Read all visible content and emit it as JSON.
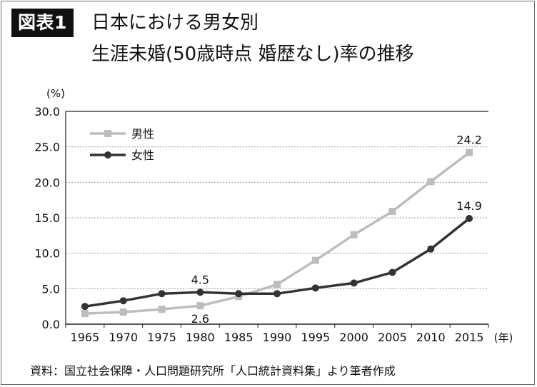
{
  "figure": {
    "tag": "図表1",
    "title_line1": "日本における男女別",
    "title_line2": "生涯未婚(50歳時点 婚歴なし)率の推移",
    "source": "資料：国立社会保障・人口問題研究所「人口統計資料集」より筆者作成"
  },
  "colors": {
    "male": "#bdbdbd",
    "female": "#333333",
    "axis": "#222222",
    "grid": "#9a9a9a"
  },
  "chart_data": {
    "type": "line",
    "title": "日本における男女別 生涯未婚(50歳時点 婚歴なし)率の推移",
    "ylabel": "(%)",
    "xlabel": "(年)",
    "ylim": [
      0,
      30
    ],
    "yticks": [
      "0.0",
      "5.0",
      "10.0",
      "15.0",
      "20.0",
      "25.0",
      "30.0"
    ],
    "categories": [
      "1965",
      "1970",
      "1975",
      "1980",
      "1985",
      "1990",
      "1995",
      "2000",
      "2005",
      "2010",
      "2015"
    ],
    "series": [
      {
        "name": "男性",
        "values": [
          1.5,
          1.7,
          2.1,
          2.6,
          3.9,
          5.6,
          9.0,
          12.6,
          15.9,
          20.1,
          24.2
        ]
      },
      {
        "name": "女性",
        "values": [
          2.5,
          3.3,
          4.3,
          4.5,
          4.3,
          4.3,
          5.1,
          5.8,
          7.3,
          10.6,
          14.9
        ]
      }
    ],
    "annotations": [
      {
        "series": "女性",
        "category": "1980",
        "label": "4.5",
        "placement": "above"
      },
      {
        "series": "男性",
        "category": "1980",
        "label": "2.6",
        "placement": "below"
      },
      {
        "series": "男性",
        "category": "2015",
        "label": "24.2",
        "placement": "above"
      },
      {
        "series": "女性",
        "category": "2015",
        "label": "14.9",
        "placement": "above"
      }
    ],
    "legend": {
      "placement": "top-left"
    },
    "grid": true
  }
}
